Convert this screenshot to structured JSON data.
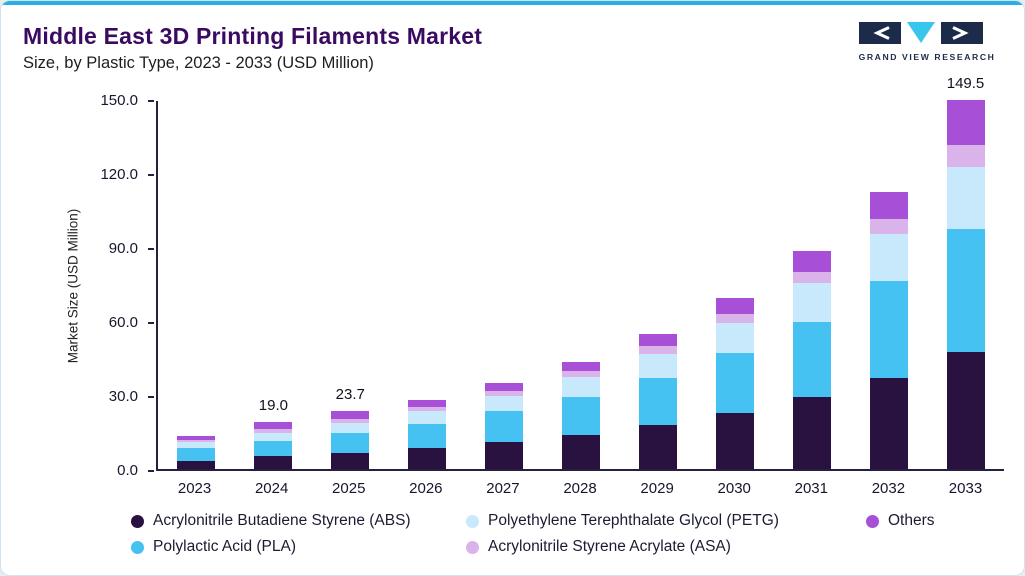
{
  "header": {
    "title": "Middle East 3D Printing Filaments Market",
    "subtitle": "Size, by Plastic Type, 2023 - 2033 (USD Million)",
    "brand_name": "GRAND VIEW RESEARCH"
  },
  "chart_data": {
    "type": "bar",
    "stacked": true,
    "title": "Middle East 3D Printing Filaments Market Size, by Plastic Type, 2023 - 2033 (USD Million)",
    "ylabel": "Market Size (USD Million)",
    "xlabel": "",
    "ylim": [
      0,
      150
    ],
    "yticks": [
      0,
      30,
      60,
      90,
      120,
      150
    ],
    "ytick_labels": [
      "0.0",
      "30.0",
      "60.0",
      "90.0",
      "120.0",
      "150.0"
    ],
    "grid": false,
    "legend_position": "bottom",
    "categories": [
      "2023",
      "2024",
      "2025",
      "2026",
      "2027",
      "2028",
      "2029",
      "2030",
      "2031",
      "2032",
      "2033"
    ],
    "series": [
      {
        "name": "Acrylonitrile Butadiene Styrene (ABS)",
        "color": "#2A1240",
        "values": [
          3.4,
          5.2,
          6.5,
          8.6,
          11.0,
          13.8,
          17.8,
          22.6,
          29.0,
          37.0,
          47.5
        ]
      },
      {
        "name": "Polylactic Acid (PLA)",
        "color": "#45C2F2",
        "values": [
          5.0,
          6.3,
          7.9,
          9.8,
          12.4,
          15.6,
          19.2,
          24.4,
          30.8,
          39.2,
          50.0
        ]
      },
      {
        "name": "Polyethylene Terephthalate Glycol (PETG)",
        "color": "#C7E9FB",
        "values": [
          2.4,
          3.3,
          4.2,
          5.0,
          6.2,
          7.8,
          9.6,
          12.4,
          15.6,
          19.0,
          25.0
        ]
      },
      {
        "name": "Acrylonitrile Styrene Acrylate (ASA)",
        "color": "#D9B3EA",
        "values": [
          0.8,
          1.4,
          1.8,
          1.9,
          2.2,
          2.5,
          3.1,
          3.6,
          4.6,
          6.0,
          9.0
        ]
      },
      {
        "name": "Others",
        "color": "#A84FD8",
        "values": [
          1.6,
          2.8,
          3.3,
          2.7,
          3.0,
          3.7,
          4.9,
          6.5,
          8.5,
          11.0,
          18.0
        ]
      }
    ],
    "data_labels": {
      "2024": "19.0",
      "2025": "23.7",
      "2033": "149.5"
    },
    "legend_order": [
      0,
      2,
      4,
      1,
      3
    ]
  },
  "colors": {
    "accent_top": "#2BAEE0",
    "title_text": "#3A0B61",
    "axis": "#25203E",
    "card_border": "#CFE4F0",
    "logo_navy": "#1C2B4A",
    "logo_cyan": "#38C6EC"
  }
}
